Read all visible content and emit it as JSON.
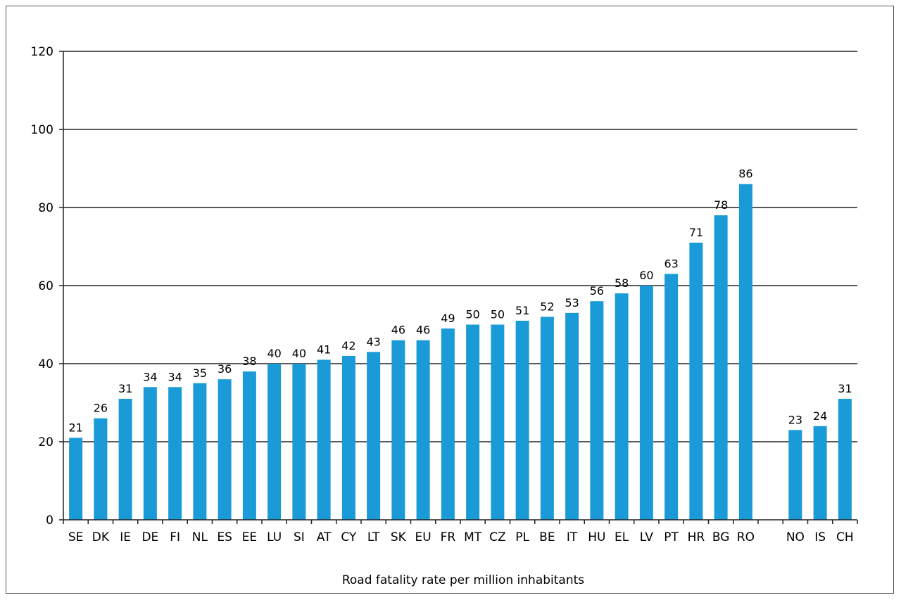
{
  "chart_data": {
    "type": "bar",
    "title": "",
    "xlabel": "Road fatality rate per million inhabitants",
    "ylabel": "",
    "ylim": [
      0,
      120
    ],
    "yticks": [
      0,
      20,
      40,
      60,
      80,
      100,
      120
    ],
    "grid": true,
    "bar_color": "#1a9ad7",
    "categories": [
      "SE",
      "DK",
      "IE",
      "DE",
      "FI",
      "NL",
      "ES",
      "EE",
      "LU",
      "SI",
      "AT",
      "CY",
      "LT",
      "SK",
      "EU",
      "FR",
      "MT",
      "CZ",
      "PL",
      "BE",
      "IT",
      "HU",
      "EL",
      "LV",
      "PT",
      "HR",
      "BG",
      "RO",
      "",
      "NO",
      "IS",
      "CH"
    ],
    "values": [
      21,
      26,
      31,
      34,
      34,
      35,
      36,
      38,
      40,
      40,
      41,
      42,
      43,
      46,
      46,
      49,
      50,
      50,
      51,
      52,
      53,
      56,
      58,
      60,
      63,
      71,
      78,
      86,
      null,
      23,
      24,
      31
    ],
    "data_labels": [
      "21",
      "26",
      "31",
      "34",
      "34",
      "35",
      "36",
      "38",
      "40",
      "40",
      "41",
      "42",
      "43",
      "46",
      "46",
      "49",
      "50",
      "50",
      "51",
      "52",
      "53",
      "56",
      "58",
      "60",
      "63",
      "71",
      "78",
      "86",
      "",
      "23",
      "24",
      "31"
    ]
  }
}
